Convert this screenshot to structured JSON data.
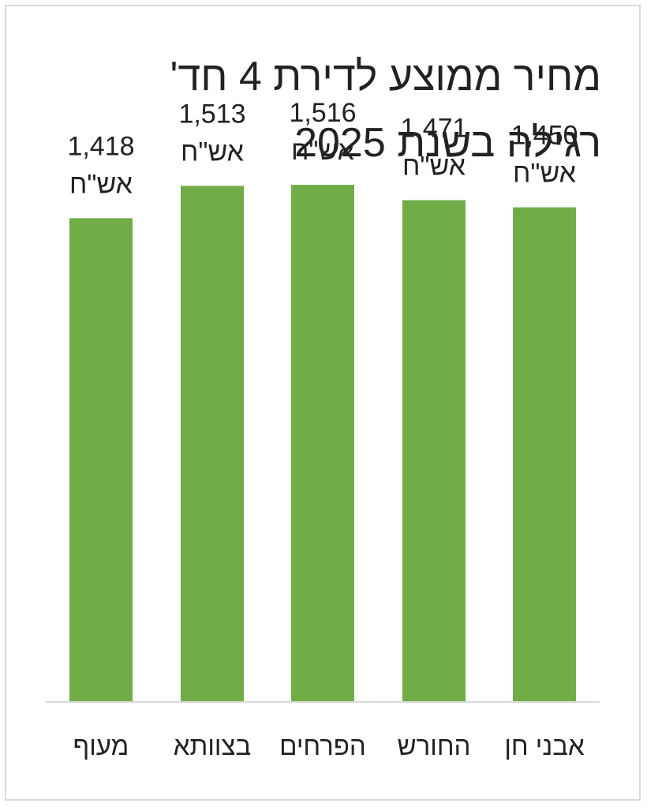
{
  "chart_data": {
    "type": "bar",
    "title_line1": "מחיר ממוצע לדירת 4 חד'",
    "title_line2": "רגילה בשנת 2025",
    "categories": [
      "מעוף",
      "בצוותא",
      "הפרחים",
      "החורש",
      "אבני חן"
    ],
    "values": [
      1418,
      1513,
      1516,
      1471,
      1450
    ],
    "value_labels": [
      "1,418",
      "1,513",
      "1,516",
      "1,471",
      "1,450"
    ],
    "unit_label": "אש\"ח",
    "ylim": [
      0,
      1780
    ],
    "bar_color": "#70ad47",
    "grid": false,
    "legend": "none"
  }
}
